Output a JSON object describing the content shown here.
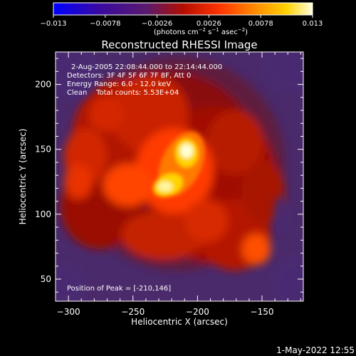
{
  "chart_data": {
    "type": "heatmap",
    "title": "Reconstructed RHESSI Image",
    "xlabel": "Heliocentric X (arcsec)",
    "ylabel": "Heliocentric Y (arcsec)",
    "xlim": [
      -310,
      -118
    ],
    "ylim": [
      33,
      225
    ],
    "xticks": [
      -300,
      -250,
      -200,
      -150
    ],
    "yticks": [
      50,
      100,
      150,
      200
    ],
    "colorbar": {
      "range": [
        -0.013,
        0.013
      ],
      "ticks": [
        "−0.013",
        "−0.0078",
        "−0.0026",
        "0.0026",
        "0.0078",
        "0.013"
      ],
      "units_main": "(photons cm",
      "units_exp1": "−2",
      "units_mid": " s",
      "units_exp2": "−1",
      "units_end": " asec",
      "units_exp3": "−2",
      "units_close": ")"
    },
    "colormap": [
      "#0000ff",
      "#4a0080",
      "#5a1a6e",
      "#b40e00",
      "#ff3300",
      "#ff8c00",
      "#ffd200",
      "#ffffe0"
    ],
    "peak": {
      "x": -210,
      "y": 146
    }
  },
  "annotations": {
    "line1": "2-Aug-2005 22:08:44.000 to 22:14:44.000",
    "line2": "Detectors: 3F 4F 5F 6F 7F 8F, Att 0",
    "line3": "Energy Range: 6.0 - 12.0 keV",
    "line4": "Clean    Total counts: 5.53E+04",
    "peak_label": "Position of Peak = [-210,146]"
  },
  "timestamp": "1-May-2022 12:55"
}
